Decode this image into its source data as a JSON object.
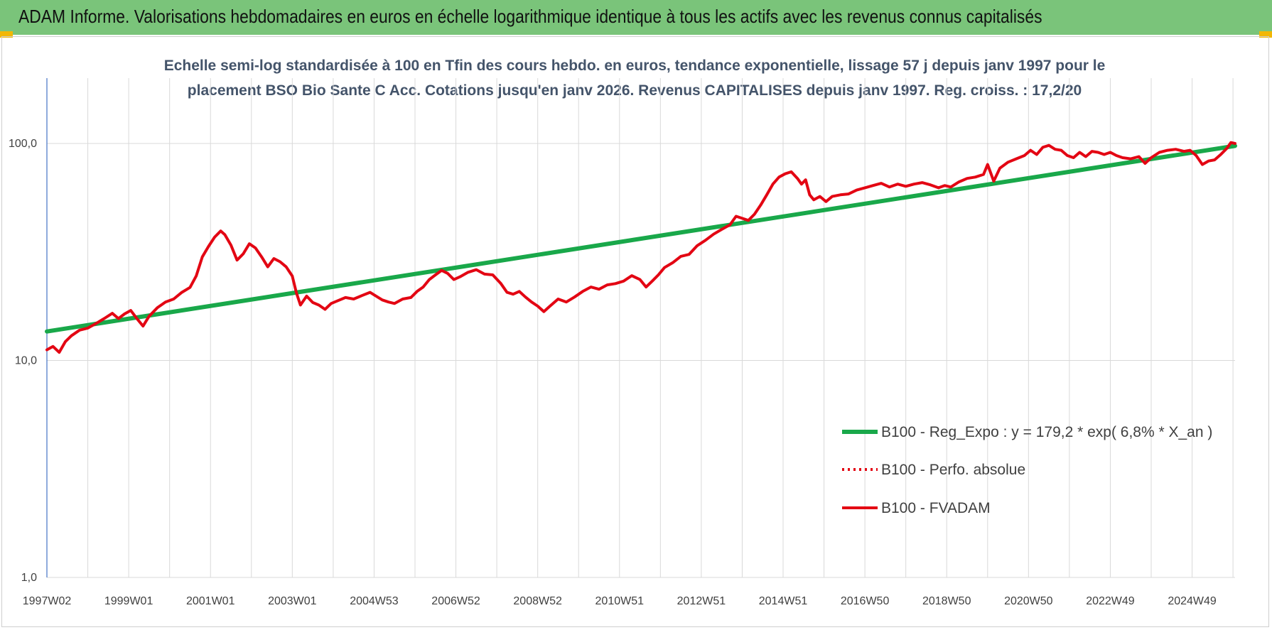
{
  "header": {
    "title": "ADAM Informe. Valorisations hebdomadaires en euros en échelle logarithmique identique à tous les actifs avec les revenus connus capitalisés",
    "background_color": "#7ac47a",
    "corner_color": "#f2b705"
  },
  "chart_data": {
    "type": "line",
    "title_lines": [
      "Echelle semi-log standardisée à 100 en Tfin des cours hebdo. en euros, tendance exponentielle, lissage 57 j depuis janv 1997 pour le",
      "placement BSO Bio Sante C Acc. Cotations jusqu'en janv 2026. Revenus CAPITALISES depuis janv 1997. Reg. croiss. : 17,2/20"
    ],
    "y_scale": "log",
    "ylim": [
      1,
      170
    ],
    "y_ticks": [
      {
        "value": 1,
        "label": "1,0"
      },
      {
        "value": 10,
        "label": "10,0"
      },
      {
        "value": 100,
        "label": "100,0"
      }
    ],
    "xlim": [
      1997.0,
      2026.05
    ],
    "x_ticks": [
      {
        "value": 1997.0,
        "label": "1997W02"
      },
      {
        "value": 1999.0,
        "label": "1999W01"
      },
      {
        "value": 2001.0,
        "label": "2001W01"
      },
      {
        "value": 2003.0,
        "label": "2003W01"
      },
      {
        "value": 2005.0,
        "label": "2004W53"
      },
      {
        "value": 2007.0,
        "label": "2006W52"
      },
      {
        "value": 2009.0,
        "label": "2008W52"
      },
      {
        "value": 2011.0,
        "label": "2010W51"
      },
      {
        "value": 2013.0,
        "label": "2012W51"
      },
      {
        "value": 2015.0,
        "label": "2014W51"
      },
      {
        "value": 2017.0,
        "label": "2016W50"
      },
      {
        "value": 2019.0,
        "label": "2018W50"
      },
      {
        "value": 2021.0,
        "label": "2020W50"
      },
      {
        "value": 2023.0,
        "label": "2022W49"
      },
      {
        "value": 2025.0,
        "label": "2024W49"
      }
    ],
    "grid": true,
    "legend_position": "bottom-right",
    "series": [
      {
        "name": "B100 - Reg_Expo : y = 179,2 * exp( 6,8% *  X_an )",
        "color": "#19a84a",
        "style": "solid",
        "points": [
          [
            1997.0,
            13.6
          ],
          [
            2026.05,
            97.5
          ]
        ]
      },
      {
        "name": "B100 - Perfo. absolue",
        "color": "#e30613",
        "style": "dotted",
        "points": []
      },
      {
        "name": "B100 - FVADAM",
        "color": "#e30613",
        "style": "solid",
        "points": [
          [
            1997.0,
            11.2
          ],
          [
            1997.15,
            11.6
          ],
          [
            1997.3,
            10.9
          ],
          [
            1997.45,
            12.2
          ],
          [
            1997.6,
            13.0
          ],
          [
            1997.8,
            13.8
          ],
          [
            1998.0,
            14.1
          ],
          [
            1998.2,
            14.8
          ],
          [
            1998.4,
            15.6
          ],
          [
            1998.6,
            16.5
          ],
          [
            1998.75,
            15.6
          ],
          [
            1998.9,
            16.4
          ],
          [
            1999.05,
            17.0
          ],
          [
            1999.2,
            15.6
          ],
          [
            1999.35,
            14.4
          ],
          [
            1999.5,
            16.0
          ],
          [
            1999.7,
            17.5
          ],
          [
            1999.9,
            18.6
          ],
          [
            2000.1,
            19.2
          ],
          [
            2000.3,
            20.6
          ],
          [
            2000.5,
            21.7
          ],
          [
            2000.65,
            24.5
          ],
          [
            2000.8,
            30.0
          ],
          [
            2000.95,
            33.5
          ],
          [
            2001.1,
            37.0
          ],
          [
            2001.25,
            39.5
          ],
          [
            2001.35,
            38.0
          ],
          [
            2001.5,
            34.0
          ],
          [
            2001.65,
            29.0
          ],
          [
            2001.8,
            31.0
          ],
          [
            2001.95,
            34.5
          ],
          [
            2002.1,
            33.0
          ],
          [
            2002.25,
            30.0
          ],
          [
            2002.4,
            27.0
          ],
          [
            2002.55,
            29.5
          ],
          [
            2002.7,
            28.5
          ],
          [
            2002.85,
            27.0
          ],
          [
            2003.0,
            24.5
          ],
          [
            2003.1,
            20.5
          ],
          [
            2003.2,
            18.0
          ],
          [
            2003.35,
            19.8
          ],
          [
            2003.5,
            18.5
          ],
          [
            2003.65,
            18.0
          ],
          [
            2003.8,
            17.2
          ],
          [
            2003.95,
            18.3
          ],
          [
            2004.1,
            18.8
          ],
          [
            2004.3,
            19.5
          ],
          [
            2004.5,
            19.2
          ],
          [
            2004.7,
            19.9
          ],
          [
            2004.9,
            20.6
          ],
          [
            2005.05,
            19.8
          ],
          [
            2005.2,
            19.0
          ],
          [
            2005.35,
            18.6
          ],
          [
            2005.5,
            18.3
          ],
          [
            2005.7,
            19.2
          ],
          [
            2005.9,
            19.5
          ],
          [
            2006.05,
            20.8
          ],
          [
            2006.2,
            21.8
          ],
          [
            2006.35,
            23.6
          ],
          [
            2006.5,
            24.8
          ],
          [
            2006.65,
            26.0
          ],
          [
            2006.8,
            25.2
          ],
          [
            2006.95,
            23.6
          ],
          [
            2007.1,
            24.3
          ],
          [
            2007.3,
            25.5
          ],
          [
            2007.5,
            26.2
          ],
          [
            2007.7,
            25.0
          ],
          [
            2007.9,
            24.8
          ],
          [
            2008.1,
            22.6
          ],
          [
            2008.25,
            20.6
          ],
          [
            2008.4,
            20.2
          ],
          [
            2008.55,
            20.8
          ],
          [
            2008.7,
            19.6
          ],
          [
            2008.85,
            18.6
          ],
          [
            2009.0,
            17.8
          ],
          [
            2009.15,
            16.8
          ],
          [
            2009.3,
            17.8
          ],
          [
            2009.5,
            19.2
          ],
          [
            2009.7,
            18.6
          ],
          [
            2009.9,
            19.6
          ],
          [
            2010.1,
            20.8
          ],
          [
            2010.3,
            21.8
          ],
          [
            2010.5,
            21.3
          ],
          [
            2010.7,
            22.3
          ],
          [
            2010.9,
            22.6
          ],
          [
            2011.1,
            23.2
          ],
          [
            2011.3,
            24.6
          ],
          [
            2011.5,
            23.6
          ],
          [
            2011.65,
            21.8
          ],
          [
            2011.8,
            23.2
          ],
          [
            2011.95,
            24.8
          ],
          [
            2012.1,
            26.8
          ],
          [
            2012.3,
            28.2
          ],
          [
            2012.5,
            30.2
          ],
          [
            2012.7,
            30.8
          ],
          [
            2012.9,
            33.8
          ],
          [
            2013.1,
            35.8
          ],
          [
            2013.3,
            38.2
          ],
          [
            2013.5,
            40.2
          ],
          [
            2013.7,
            42.2
          ],
          [
            2013.85,
            46.2
          ],
          [
            2014.0,
            45.2
          ],
          [
            2014.15,
            44.2
          ],
          [
            2014.3,
            47.2
          ],
          [
            2014.45,
            52.0
          ],
          [
            2014.6,
            58.0
          ],
          [
            2014.75,
            65.0
          ],
          [
            2014.9,
            70.0
          ],
          [
            2015.05,
            72.5
          ],
          [
            2015.2,
            74.0
          ],
          [
            2015.35,
            69.0
          ],
          [
            2015.45,
            65.0
          ],
          [
            2015.55,
            68.0
          ],
          [
            2015.65,
            58.0
          ],
          [
            2015.75,
            55.0
          ],
          [
            2015.9,
            57.0
          ],
          [
            2016.05,
            54.0
          ],
          [
            2016.2,
            57.0
          ],
          [
            2016.4,
            58.0
          ],
          [
            2016.6,
            58.5
          ],
          [
            2016.8,
            61.0
          ],
          [
            2017.0,
            62.5
          ],
          [
            2017.2,
            64.0
          ],
          [
            2017.4,
            65.5
          ],
          [
            2017.6,
            63.0
          ],
          [
            2017.8,
            65.0
          ],
          [
            2018.0,
            63.5
          ],
          [
            2018.2,
            65.0
          ],
          [
            2018.4,
            66.0
          ],
          [
            2018.6,
            64.5
          ],
          [
            2018.8,
            62.5
          ],
          [
            2018.95,
            64.0
          ],
          [
            2019.1,
            63.0
          ],
          [
            2019.3,
            66.5
          ],
          [
            2019.5,
            69.0
          ],
          [
            2019.7,
            70.0
          ],
          [
            2019.9,
            72.0
          ],
          [
            2020.0,
            80.0
          ],
          [
            2020.15,
            67.0
          ],
          [
            2020.3,
            77.0
          ],
          [
            2020.5,
            82.0
          ],
          [
            2020.7,
            85.0
          ],
          [
            2020.9,
            88.0
          ],
          [
            2021.05,
            93.0
          ],
          [
            2021.2,
            89.0
          ],
          [
            2021.35,
            96.0
          ],
          [
            2021.5,
            98.0
          ],
          [
            2021.65,
            94.0
          ],
          [
            2021.8,
            93.0
          ],
          [
            2021.95,
            88.0
          ],
          [
            2022.1,
            86.0
          ],
          [
            2022.25,
            91.0
          ],
          [
            2022.4,
            87.0
          ],
          [
            2022.55,
            92.0
          ],
          [
            2022.7,
            91.0
          ],
          [
            2022.85,
            89.0
          ],
          [
            2023.0,
            91.0
          ],
          [
            2023.15,
            88.0
          ],
          [
            2023.3,
            86.0
          ],
          [
            2023.5,
            85.0
          ],
          [
            2023.7,
            87.0
          ],
          [
            2023.85,
            81.0
          ],
          [
            2024.0,
            86.0
          ],
          [
            2024.2,
            91.0
          ],
          [
            2024.4,
            93.0
          ],
          [
            2024.6,
            94.0
          ],
          [
            2024.8,
            92.0
          ],
          [
            2024.95,
            93.0
          ],
          [
            2025.1,
            88.0
          ],
          [
            2025.25,
            80.0
          ],
          [
            2025.4,
            83.0
          ],
          [
            2025.55,
            84.0
          ],
          [
            2025.7,
            89.0
          ],
          [
            2025.85,
            95.0
          ],
          [
            2025.95,
            101.0
          ],
          [
            2026.05,
            100.0
          ]
        ]
      }
    ]
  }
}
